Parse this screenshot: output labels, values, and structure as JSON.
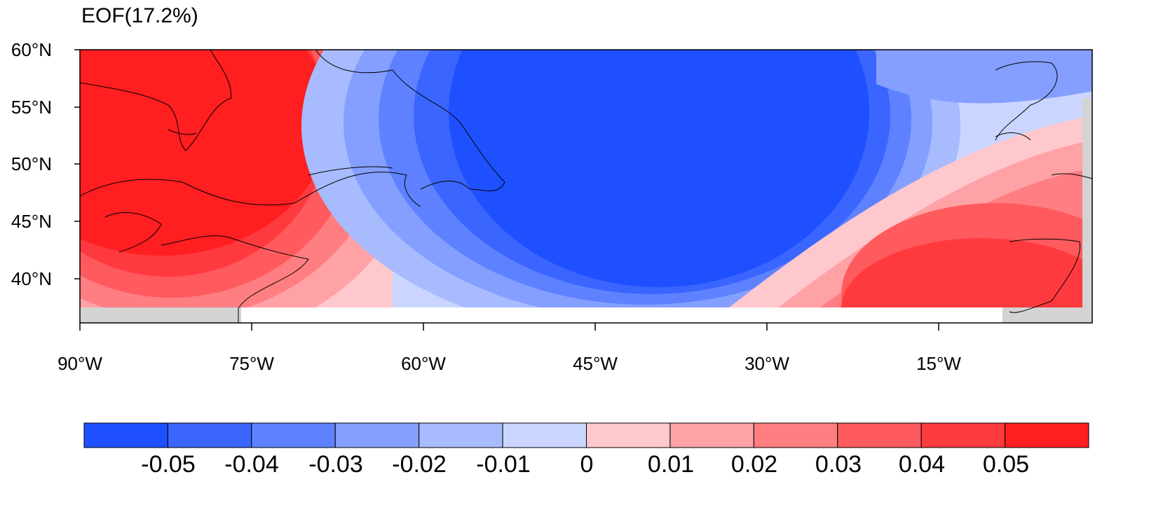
{
  "title": "EOF(17.2%)",
  "map": {
    "lat_labels": [
      "60°N",
      "55°N",
      "50°N",
      "45°N",
      "40°N"
    ],
    "lon_labels": [
      "90°W",
      "75°W",
      "60°W",
      "45°W",
      "30°W",
      "15°W"
    ],
    "land_color": "#d3d3d3",
    "coastline_color": "#000000"
  },
  "colorbar": {
    "colors": [
      "#1e50ff",
      "#3a66ff",
      "#5e82ff",
      "#849fff",
      "#a8bbff",
      "#cad6ff",
      "#ffc8cc",
      "#ffa2a6",
      "#ff7e82",
      "#ff5a5e",
      "#ff3a3e",
      "#ff1e20"
    ],
    "labels": [
      "-0.05",
      "-0.04",
      "-0.03",
      "-0.02",
      "-0.01",
      "0",
      "0.01",
      "0.02",
      "0.03",
      "0.04",
      "0.05"
    ]
  }
}
